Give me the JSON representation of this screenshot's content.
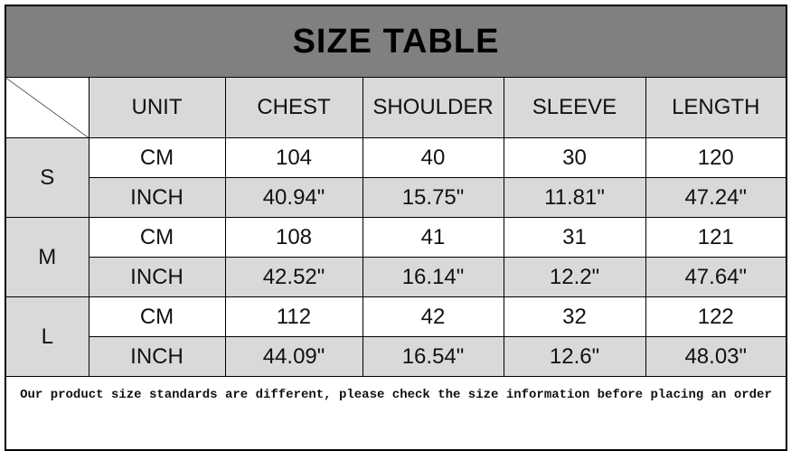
{
  "title": "SIZE TABLE",
  "headers": [
    "UNIT",
    "CHEST",
    "SHOULDER",
    "SLEEVE",
    "LENGTH"
  ],
  "sizes": [
    {
      "size": "S",
      "rows": [
        {
          "unit": "CM",
          "values": [
            "104",
            "40",
            "30",
            "120"
          ]
        },
        {
          "unit": "INCH",
          "values": [
            "40.94\"",
            "15.75\"",
            "11.81\"",
            "47.24\""
          ]
        }
      ]
    },
    {
      "size": "M",
      "rows": [
        {
          "unit": "CM",
          "values": [
            "108",
            "41",
            "31",
            "121"
          ]
        },
        {
          "unit": "INCH",
          "values": [
            "42.52\"",
            "16.14\"",
            "12.2\"",
            "47.64\""
          ]
        }
      ]
    },
    {
      "size": "L",
      "rows": [
        {
          "unit": "CM",
          "values": [
            "112",
            "42",
            "32",
            "122"
          ]
        },
        {
          "unit": "INCH",
          "values": [
            "44.09\"",
            "16.54\"",
            "12.6\"",
            "48.03\""
          ]
        }
      ]
    }
  ],
  "note": "Our product size standards are different, please check the size information before placing an order",
  "colors": {
    "title_bg": "#808080",
    "header_bg": "#d9d9d9"
  }
}
